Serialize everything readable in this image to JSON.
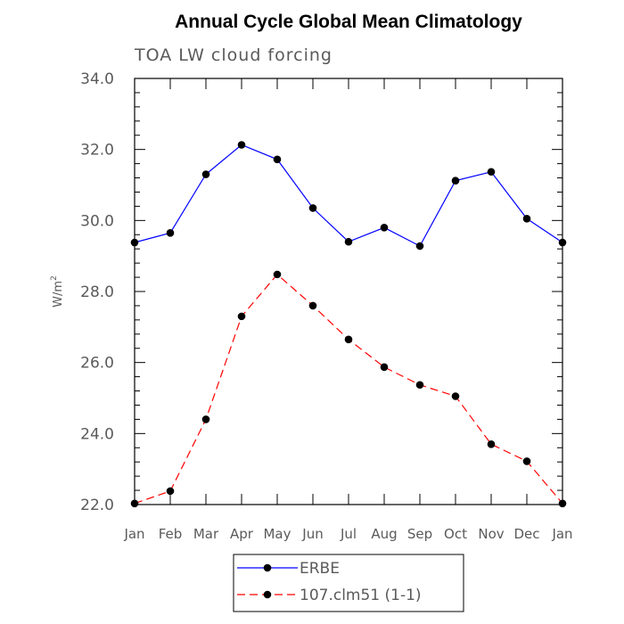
{
  "chart_data": {
    "type": "line",
    "title": "Annual Cycle Global Mean Climatology",
    "subtitle": "TOA LW cloud forcing",
    "xlabel": "",
    "ylabel": "W/m",
    "ylabel_superscript": "2",
    "categories": [
      "Jan",
      "Feb",
      "Mar",
      "Apr",
      "May",
      "Jun",
      "Jul",
      "Aug",
      "Sep",
      "Oct",
      "Nov",
      "Dec",
      "Jan"
    ],
    "ylim": [
      22.0,
      34.0
    ],
    "yticks": [
      "22.0",
      "24.0",
      "26.0",
      "28.0",
      "30.0",
      "32.0",
      "34.0"
    ],
    "series": [
      {
        "name": "ERBE",
        "color": "#0000ff",
        "style": "solid",
        "values": [
          29.38,
          29.65,
          31.3,
          32.13,
          31.72,
          30.35,
          29.4,
          29.8,
          29.28,
          31.12,
          31.37,
          30.05,
          29.38
        ]
      },
      {
        "name": "107.clm51 (1-1)",
        "color": "#ff0000",
        "style": "dashed",
        "values": [
          22.03,
          22.38,
          24.4,
          27.3,
          28.48,
          27.6,
          26.65,
          25.87,
          25.37,
          25.05,
          23.7,
          23.22,
          22.03
        ]
      }
    ],
    "legend_position": "bottom-center"
  }
}
